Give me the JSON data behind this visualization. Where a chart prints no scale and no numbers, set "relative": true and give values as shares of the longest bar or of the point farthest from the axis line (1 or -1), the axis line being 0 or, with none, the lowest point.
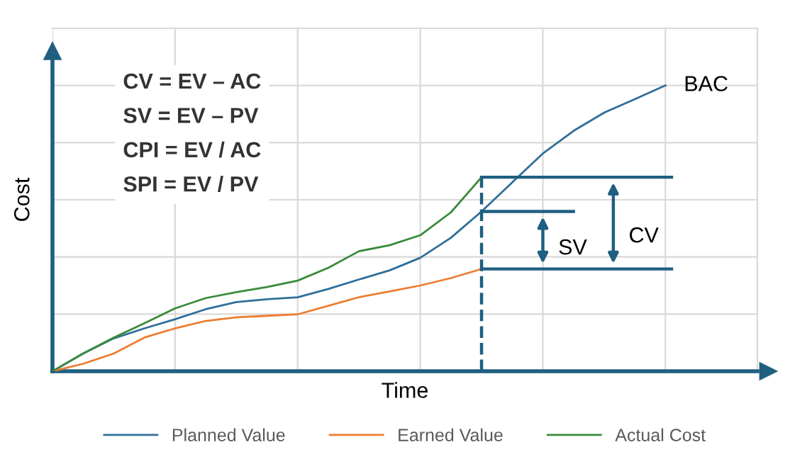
{
  "chart_data": {
    "type": "line",
    "relative": true,
    "xlabel": "Time",
    "ylabel": "Cost",
    "categories": [
      null,
      null,
      null,
      null,
      null,
      null,
      null,
      null,
      null,
      null,
      null,
      null,
      null,
      null,
      null,
      null,
      null,
      null,
      null,
      null,
      null
    ],
    "series": [
      {
        "name": "Planned Value",
        "color": "#2f6e9a",
        "values": [
          0,
          0.062,
          0.115,
          0.15,
          0.182,
          0.217,
          0.242,
          0.252,
          0.259,
          0.288,
          0.321,
          0.353,
          0.397,
          0.467,
          0.559,
          0.661,
          0.762,
          0.841,
          0.905,
          0.952,
          1
        ]
      },
      {
        "name": "Earned Value",
        "color": "#ed7d31",
        "values": [
          0,
          0.026,
          0.062,
          0.118,
          0.15,
          0.176,
          0.189,
          0.194,
          0.199,
          0.229,
          0.259,
          0.279,
          0.3,
          0.326,
          0.358,
          null,
          null,
          null,
          null,
          null,
          null
        ]
      },
      {
        "name": "Actual Cost",
        "color": "#3a8a3a",
        "values": [
          0,
          0.062,
          0.118,
          0.168,
          0.22,
          0.256,
          0.277,
          0.295,
          0.317,
          0.362,
          0.42,
          0.441,
          0.476,
          0.556,
          0.679,
          null,
          null,
          null,
          null,
          null,
          null
        ]
      }
    ],
    "annotations": [
      "CV = EV – AC",
      "SV = EV – PV",
      "CPI = EV / AC",
      "SPI = EV / PV",
      "BAC",
      "SV",
      "CV"
    ],
    "grid": true,
    "legend": "bottom",
    "marker": "none",
    "line_style": "solid"
  }
}
